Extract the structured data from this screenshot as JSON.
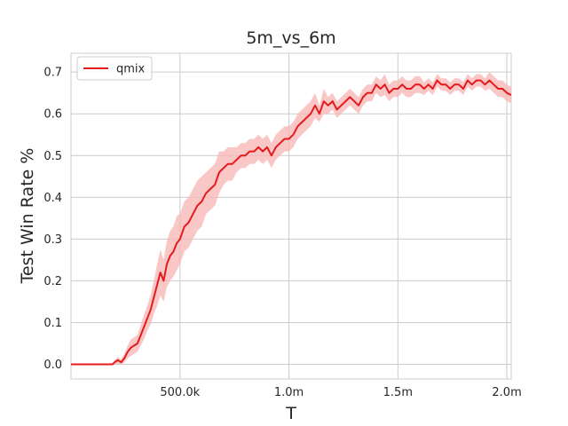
{
  "chart_data": {
    "type": "line",
    "title": "5m_vs_6m",
    "xlabel": "T",
    "ylabel": "Test Win Rate %",
    "xlim": [
      0,
      2020000
    ],
    "ylim": [
      -0.035,
      0.745
    ],
    "xticks": [
      {
        "value": 500000,
        "label": "500.0k"
      },
      {
        "value": 1000000,
        "label": "1.0m"
      },
      {
        "value": 1500000,
        "label": "1.5m"
      },
      {
        "value": 2000000,
        "label": "2.0m"
      }
    ],
    "yticks": [
      {
        "value": 0.0,
        "label": "0.0"
      },
      {
        "value": 0.1,
        "label": "0.1"
      },
      {
        "value": 0.2,
        "label": "0.2"
      },
      {
        "value": 0.3,
        "label": "0.3"
      },
      {
        "value": 0.4,
        "label": "0.4"
      },
      {
        "value": 0.5,
        "label": "0.5"
      },
      {
        "value": 0.6,
        "label": "0.6"
      },
      {
        "value": 0.7,
        "label": "0.7"
      }
    ],
    "grid": true,
    "legend_position": "top-left",
    "series": [
      {
        "name": "qmix",
        "color": "#e41a1c",
        "band_color": "#f8b4b4",
        "x": [
          0,
          50000,
          100000,
          150000,
          175000,
          190000,
          200000,
          215000,
          230000,
          245000,
          260000,
          275000,
          290000,
          305000,
          320000,
          335000,
          350000,
          365000,
          380000,
          395000,
          410000,
          425000,
          440000,
          455000,
          470000,
          485000,
          500000,
          520000,
          540000,
          560000,
          580000,
          600000,
          620000,
          640000,
          660000,
          680000,
          700000,
          720000,
          740000,
          760000,
          780000,
          800000,
          820000,
          840000,
          860000,
          880000,
          900000,
          920000,
          940000,
          960000,
          980000,
          1000000,
          1020000,
          1040000,
          1060000,
          1080000,
          1100000,
          1120000,
          1140000,
          1160000,
          1180000,
          1200000,
          1220000,
          1240000,
          1260000,
          1280000,
          1300000,
          1320000,
          1340000,
          1360000,
          1380000,
          1400000,
          1420000,
          1440000,
          1460000,
          1480000,
          1500000,
          1520000,
          1540000,
          1560000,
          1580000,
          1600000,
          1620000,
          1640000,
          1660000,
          1680000,
          1700000,
          1720000,
          1740000,
          1760000,
          1780000,
          1800000,
          1820000,
          1840000,
          1860000,
          1880000,
          1900000,
          1920000,
          1940000,
          1960000,
          1980000,
          2000000,
          2020000
        ],
        "y": [
          0.0,
          0.0,
          0.0,
          0.0,
          0.0,
          0.0,
          0.005,
          0.01,
          0.005,
          0.015,
          0.03,
          0.04,
          0.045,
          0.05,
          0.07,
          0.09,
          0.11,
          0.13,
          0.16,
          0.19,
          0.22,
          0.2,
          0.24,
          0.26,
          0.27,
          0.29,
          0.3,
          0.33,
          0.34,
          0.36,
          0.38,
          0.39,
          0.41,
          0.42,
          0.43,
          0.46,
          0.47,
          0.48,
          0.48,
          0.49,
          0.5,
          0.5,
          0.51,
          0.51,
          0.52,
          0.51,
          0.52,
          0.5,
          0.52,
          0.53,
          0.54,
          0.54,
          0.55,
          0.57,
          0.58,
          0.59,
          0.6,
          0.62,
          0.6,
          0.63,
          0.62,
          0.63,
          0.61,
          0.62,
          0.63,
          0.64,
          0.63,
          0.62,
          0.64,
          0.65,
          0.65,
          0.67,
          0.66,
          0.67,
          0.65,
          0.66,
          0.66,
          0.67,
          0.66,
          0.66,
          0.67,
          0.67,
          0.66,
          0.67,
          0.66,
          0.68,
          0.67,
          0.67,
          0.66,
          0.67,
          0.67,
          0.66,
          0.68,
          0.67,
          0.68,
          0.68,
          0.67,
          0.68,
          0.67,
          0.66,
          0.66,
          0.65,
          0.645
        ],
        "lower": [
          0.0,
          0.0,
          0.0,
          0.0,
          0.0,
          0.0,
          0.0,
          0.002,
          0.0,
          0.005,
          0.015,
          0.02,
          0.025,
          0.03,
          0.045,
          0.06,
          0.08,
          0.095,
          0.12,
          0.14,
          0.165,
          0.15,
          0.185,
          0.2,
          0.21,
          0.225,
          0.24,
          0.27,
          0.28,
          0.3,
          0.32,
          0.33,
          0.36,
          0.37,
          0.38,
          0.41,
          0.43,
          0.44,
          0.44,
          0.46,
          0.47,
          0.47,
          0.48,
          0.48,
          0.49,
          0.48,
          0.49,
          0.47,
          0.49,
          0.5,
          0.51,
          0.51,
          0.52,
          0.54,
          0.55,
          0.56,
          0.57,
          0.59,
          0.58,
          0.6,
          0.6,
          0.61,
          0.59,
          0.6,
          0.61,
          0.62,
          0.61,
          0.6,
          0.62,
          0.63,
          0.63,
          0.65,
          0.64,
          0.645,
          0.63,
          0.64,
          0.64,
          0.65,
          0.64,
          0.64,
          0.65,
          0.65,
          0.645,
          0.655,
          0.645,
          0.665,
          0.655,
          0.655,
          0.645,
          0.655,
          0.655,
          0.645,
          0.665,
          0.655,
          0.665,
          0.665,
          0.655,
          0.66,
          0.65,
          0.64,
          0.64,
          0.63,
          0.625
        ],
        "upper": [
          0.0,
          0.0,
          0.0,
          0.0,
          0.0,
          0.0,
          0.01,
          0.018,
          0.012,
          0.025,
          0.045,
          0.06,
          0.065,
          0.07,
          0.095,
          0.12,
          0.14,
          0.165,
          0.2,
          0.24,
          0.275,
          0.25,
          0.295,
          0.32,
          0.33,
          0.355,
          0.36,
          0.39,
          0.4,
          0.42,
          0.44,
          0.45,
          0.46,
          0.47,
          0.48,
          0.51,
          0.51,
          0.52,
          0.52,
          0.52,
          0.53,
          0.53,
          0.54,
          0.54,
          0.55,
          0.54,
          0.55,
          0.53,
          0.55,
          0.56,
          0.57,
          0.57,
          0.58,
          0.6,
          0.61,
          0.62,
          0.63,
          0.65,
          0.62,
          0.66,
          0.64,
          0.65,
          0.63,
          0.64,
          0.65,
          0.66,
          0.65,
          0.64,
          0.66,
          0.67,
          0.67,
          0.69,
          0.68,
          0.695,
          0.67,
          0.68,
          0.68,
          0.69,
          0.68,
          0.68,
          0.69,
          0.69,
          0.675,
          0.685,
          0.675,
          0.695,
          0.685,
          0.685,
          0.675,
          0.685,
          0.685,
          0.675,
          0.695,
          0.685,
          0.695,
          0.695,
          0.685,
          0.7,
          0.69,
          0.68,
          0.68,
          0.67,
          0.665
        ]
      }
    ]
  }
}
